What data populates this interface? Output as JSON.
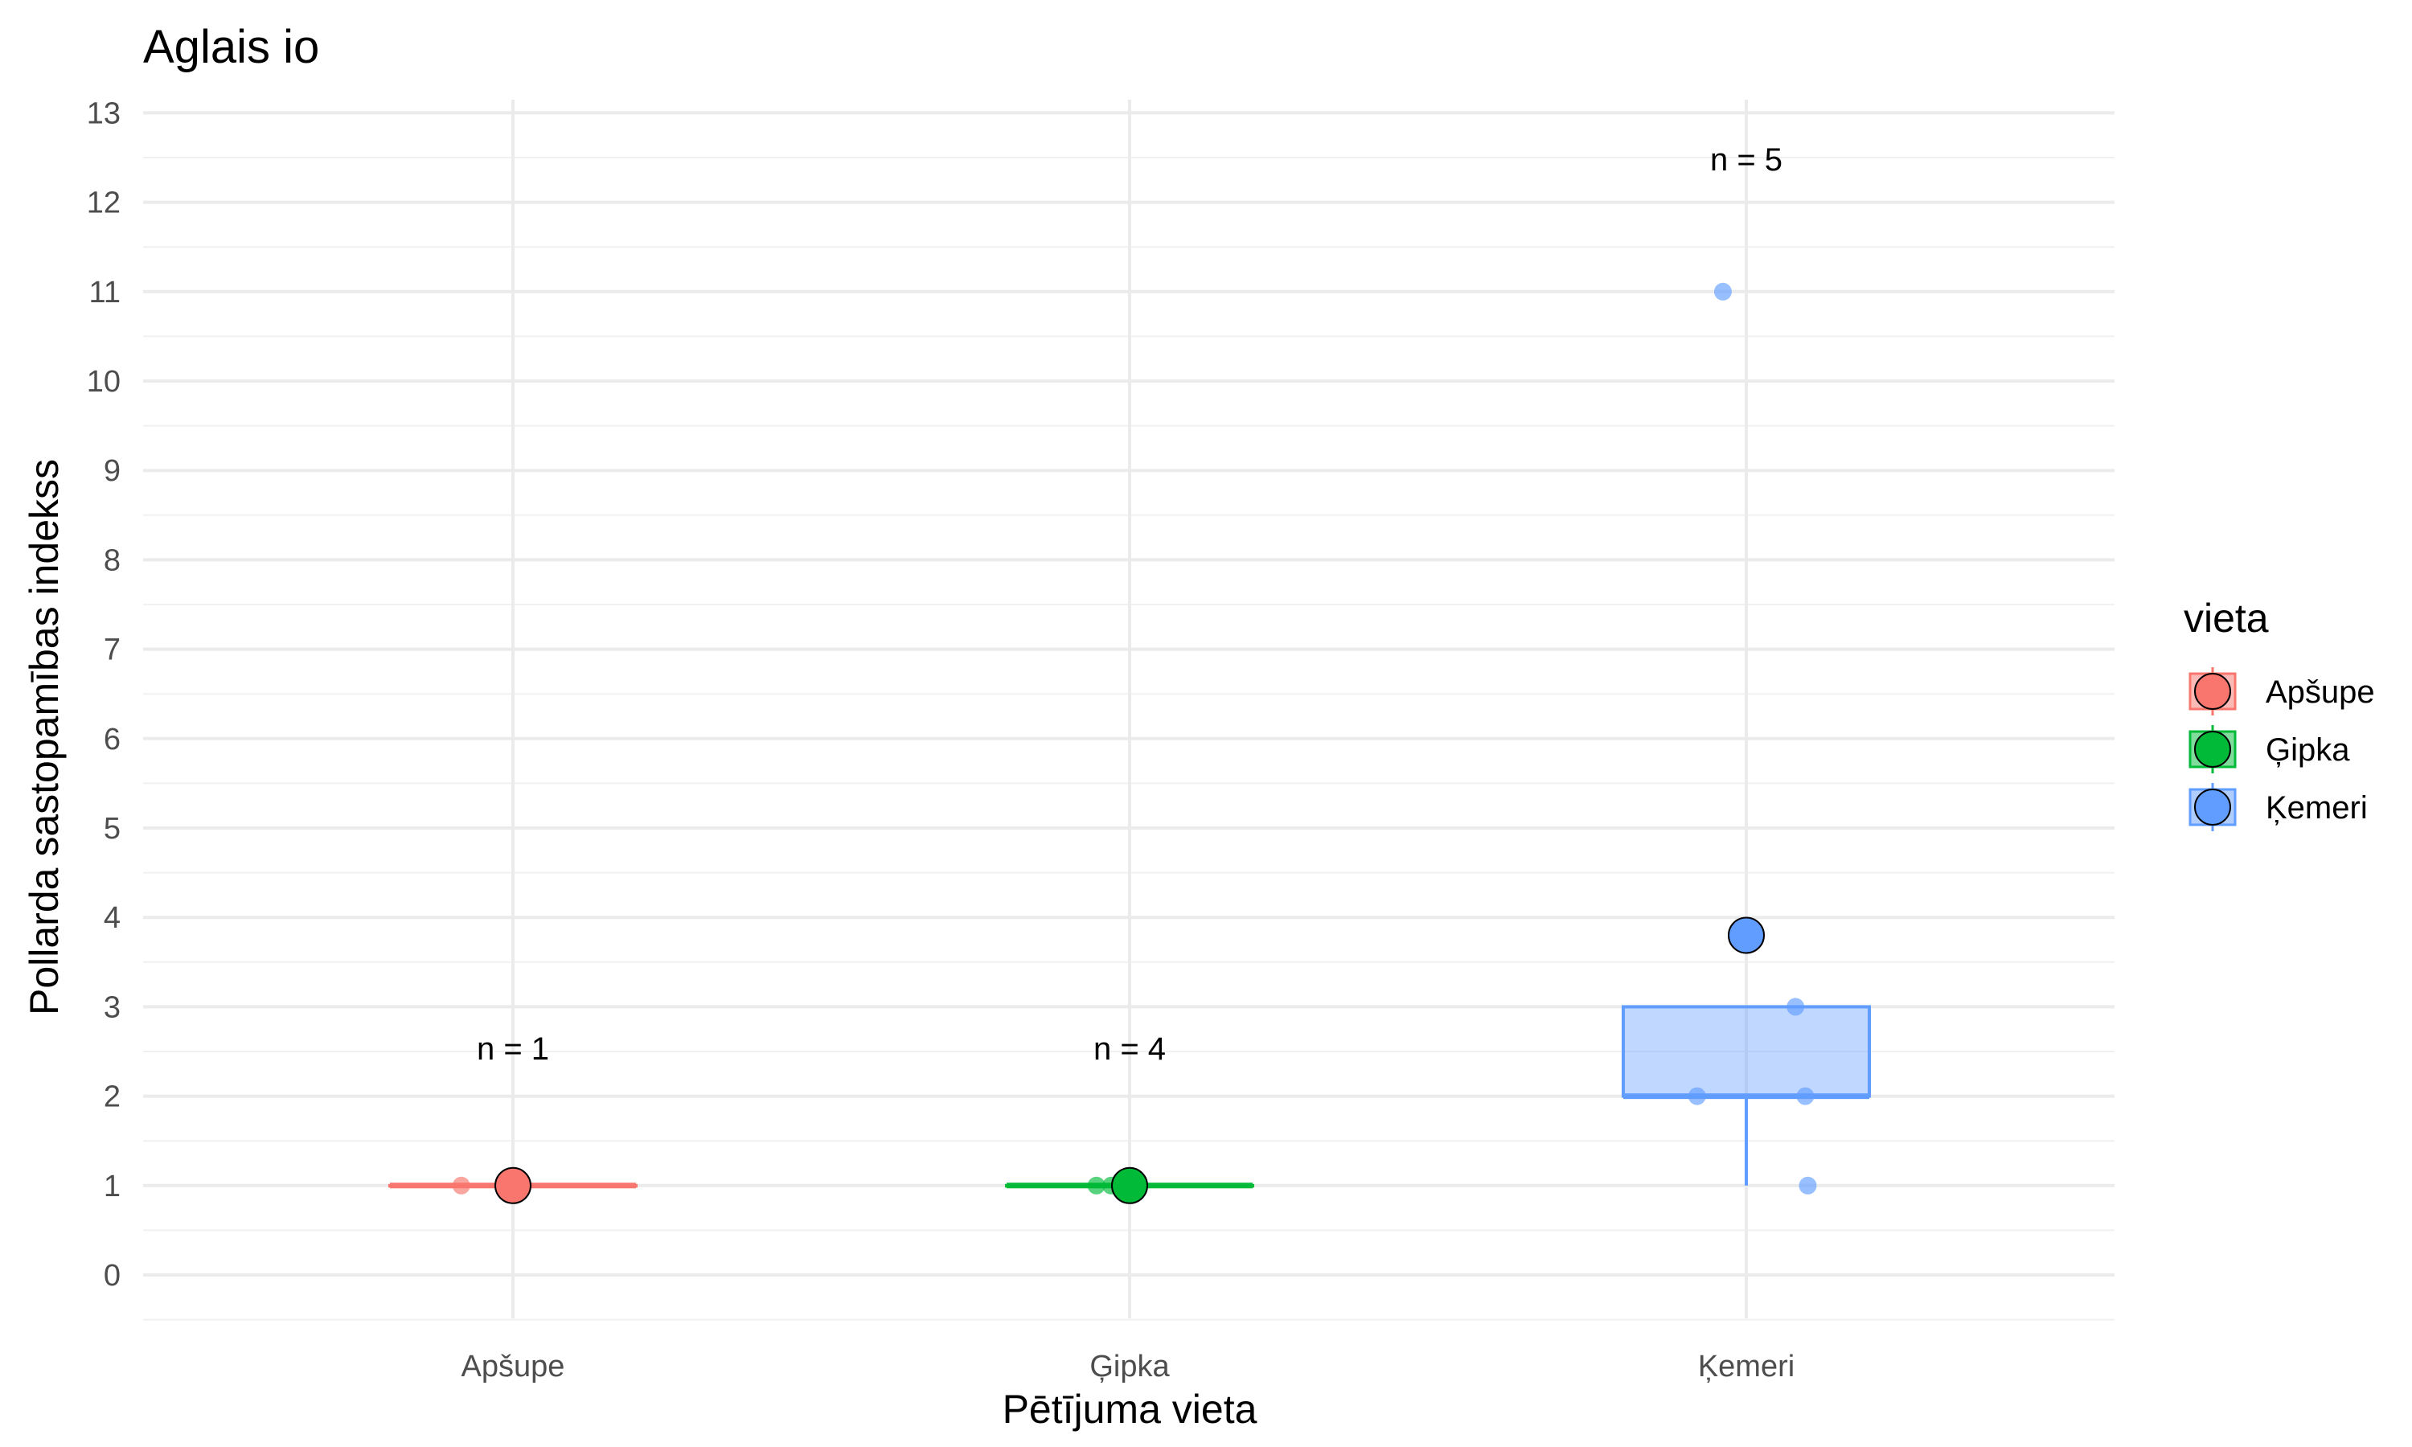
{
  "chart_data": {
    "type": "box",
    "title": "Aglais io",
    "xlabel": "Pētījuma vieta",
    "ylabel": "Pollarda sastopamības indekss",
    "ylim": [
      -0.5,
      13.1
    ],
    "yticks": [
      0,
      1,
      2,
      3,
      4,
      5,
      6,
      7,
      8,
      9,
      10,
      11,
      12,
      13
    ],
    "grid": true,
    "legend_position": "right",
    "legend_title": "vieta",
    "categories": [
      "Apšupe",
      "Ģipka",
      "Ķemeri"
    ],
    "groups": [
      {
        "name": "Apšupe",
        "color": "#F8766D",
        "n_label": "n = 1",
        "box": {
          "q1": 1,
          "median": 1,
          "q3": 1,
          "whisker_low": 1,
          "whisker_high": 1
        },
        "mean": 1,
        "points": [
          1
        ]
      },
      {
        "name": "Ģipka",
        "color": "#00BA38",
        "n_label": "n = 4",
        "box": {
          "q1": 1,
          "median": 1,
          "q3": 1,
          "whisker_low": 1,
          "whisker_high": 1
        },
        "mean": 1,
        "points": [
          1,
          1,
          1,
          1
        ]
      },
      {
        "name": "Ķemeri",
        "color": "#619CFF",
        "n_label": "n = 5",
        "box": {
          "q1": 2,
          "median": 2,
          "q3": 3,
          "whisker_low": 1,
          "whisker_high": 3
        },
        "mean": 3.8,
        "points": [
          11,
          3,
          2,
          2,
          1
        ]
      }
    ]
  }
}
